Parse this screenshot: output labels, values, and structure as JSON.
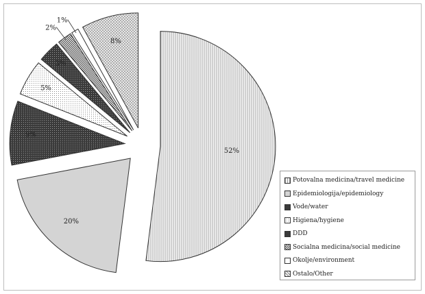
{
  "chart_data": {
    "type": "pie",
    "exploded": true,
    "legend_position": "bottom-right",
    "slices": [
      {
        "name": "Potovalna medicina/travel medicine",
        "value": 52,
        "label": "52%",
        "pattern": "vlines",
        "color": "#e6e6e6"
      },
      {
        "name": "Epidemiologija/epidemiology",
        "value": 20,
        "label": "20%",
        "pattern": "solid",
        "color": "#d4d4d4"
      },
      {
        "name": "Vode/water",
        "value": 9,
        "label": "9%",
        "pattern": "dots-dark",
        "color": "#555555"
      },
      {
        "name": "Higiena/hygiene",
        "value": 5,
        "label": "5%",
        "pattern": "dots-light",
        "color": "#f0f0f0"
      },
      {
        "name": "DDD",
        "value": 3,
        "label": "3%",
        "pattern": "dots-dark",
        "color": "#3e3e3e"
      },
      {
        "name": "Socialna medicina/social medicine",
        "value": 2,
        "label": "2%",
        "pattern": "check",
        "color": "#ffffff"
      },
      {
        "name": "Okolje/environment",
        "value": 1,
        "label": "1%",
        "pattern": "solid",
        "color": "#ffffff"
      },
      {
        "name": "Ostalo/Other",
        "value": 8,
        "label": "8%",
        "pattern": "waves",
        "color": "#dcdcdc"
      }
    ]
  }
}
